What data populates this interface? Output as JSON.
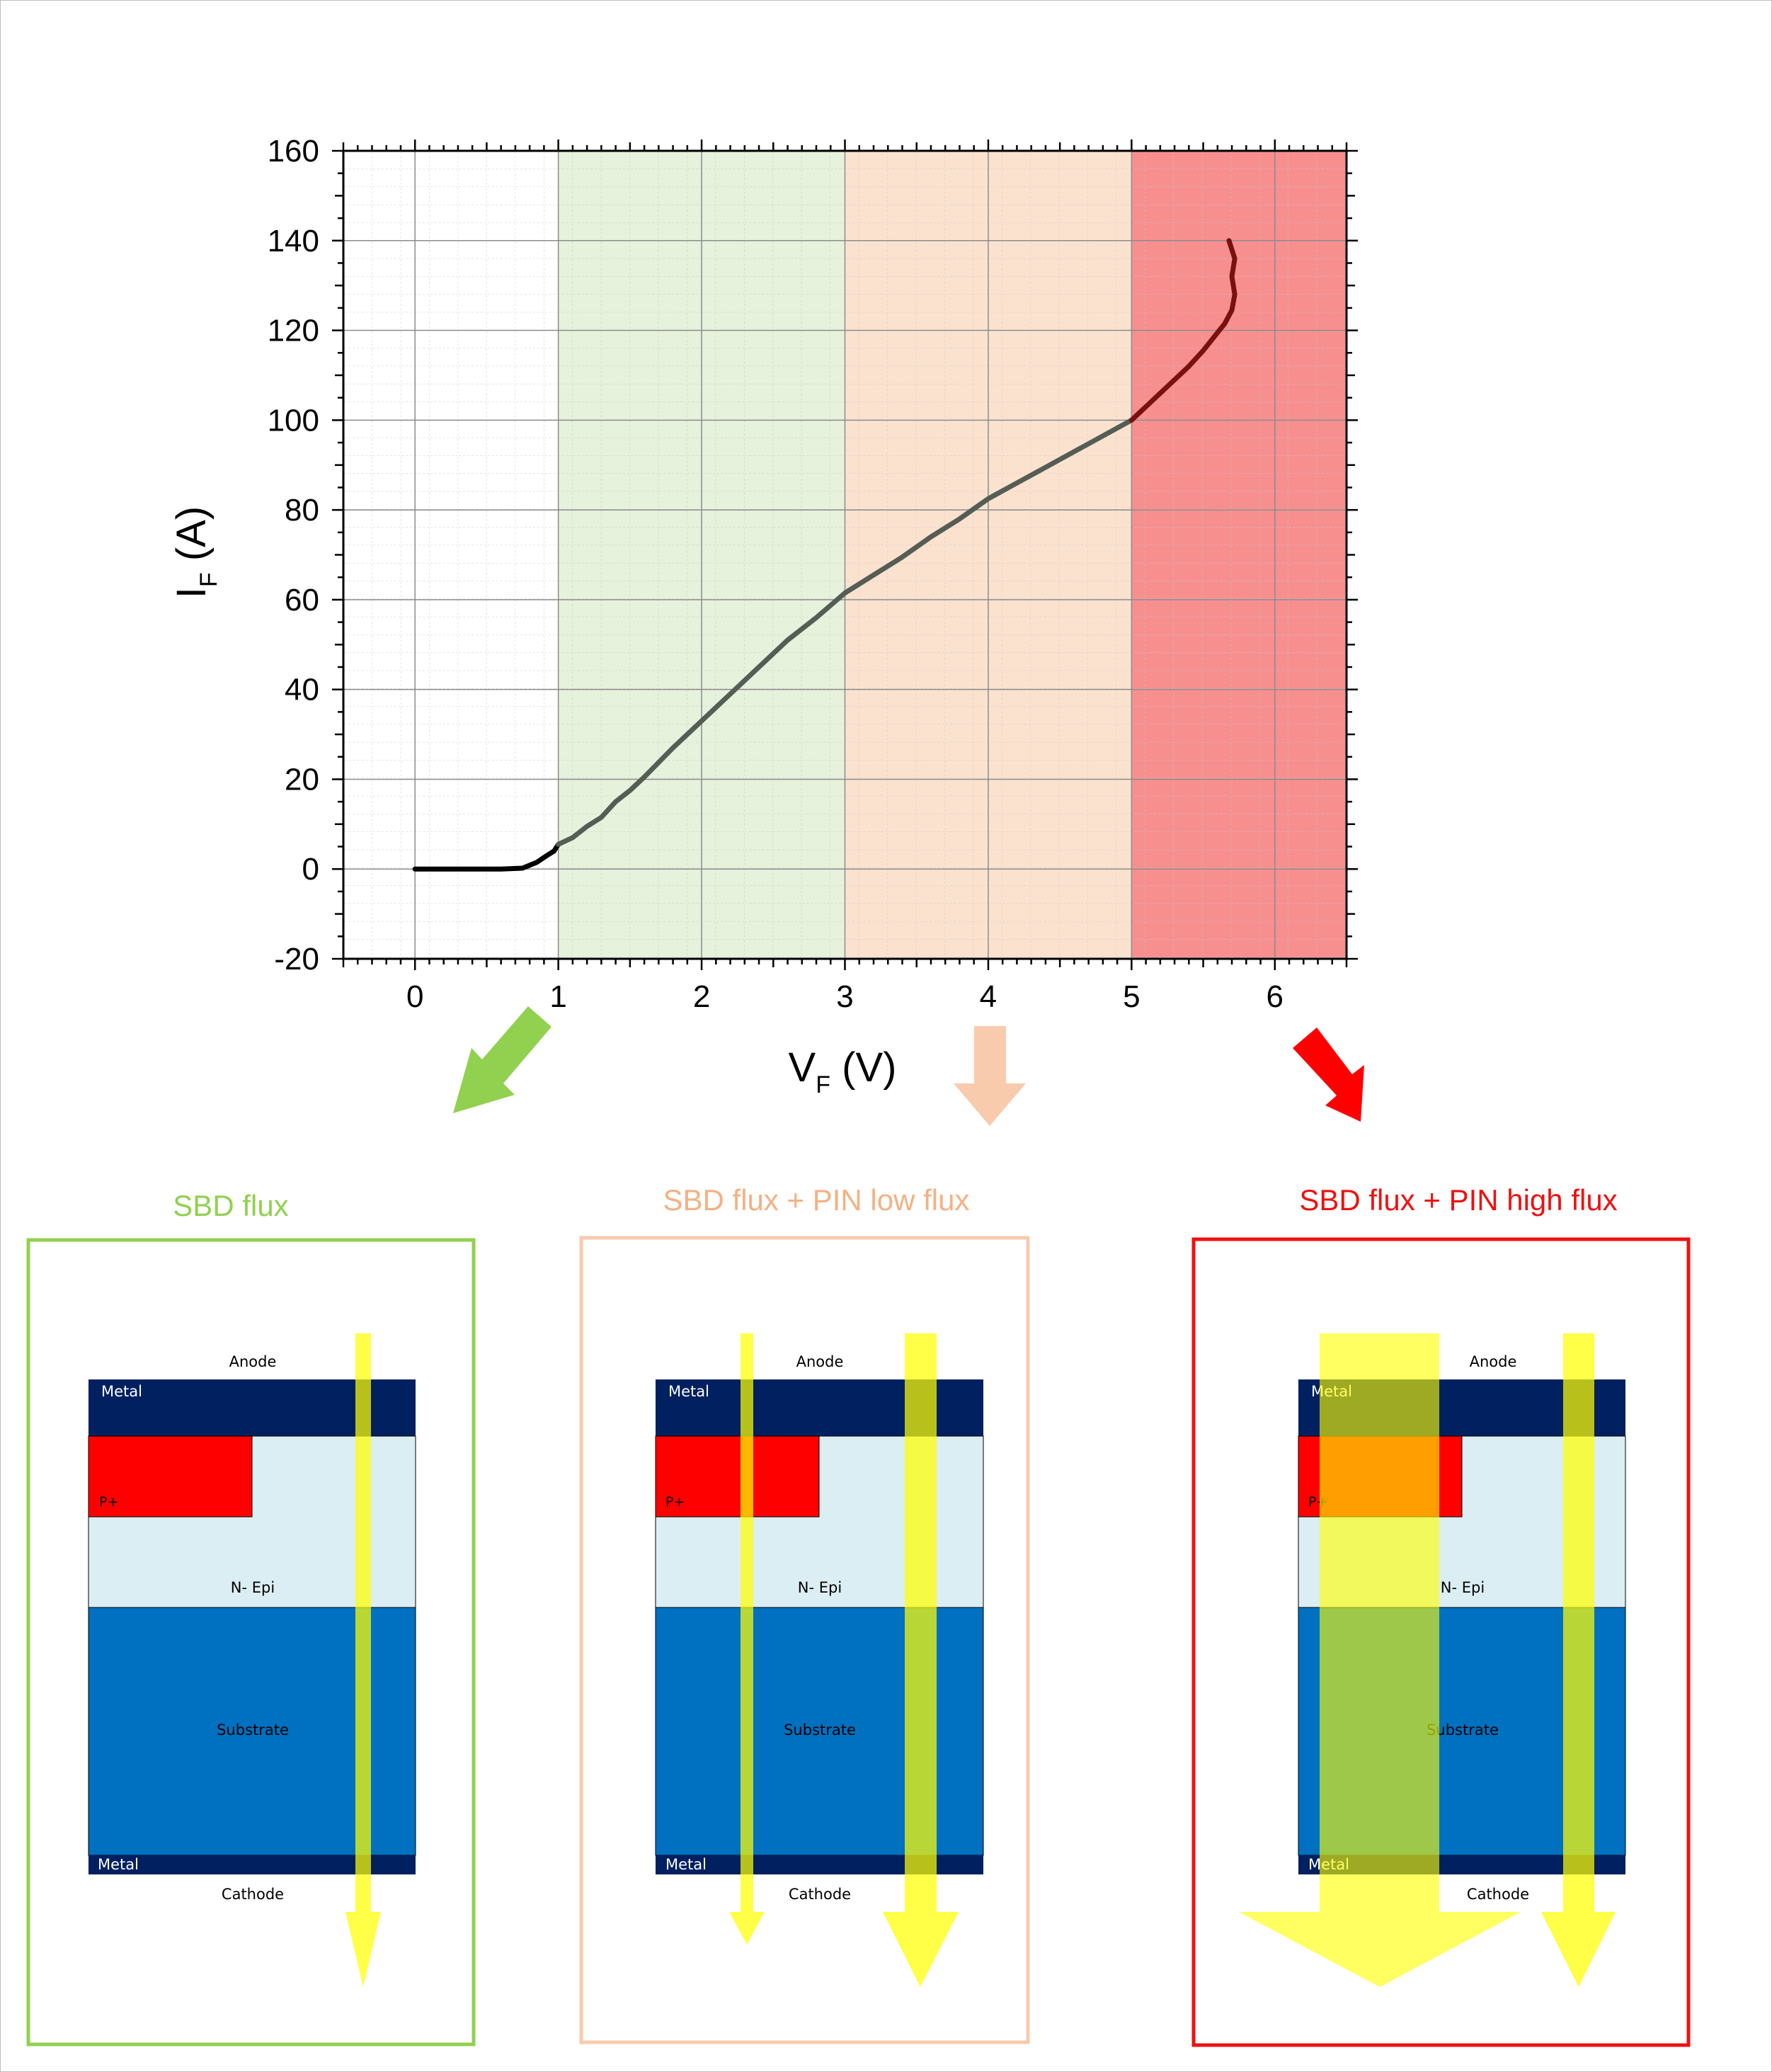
{
  "chart_data": {
    "type": "line",
    "xlabel": {
      "main": "V",
      "sub": "F",
      "unit": " (V)"
    },
    "ylabel": {
      "main": "I",
      "sub": "F",
      "unit": " (A)"
    },
    "xlim": [
      -0.5,
      6.5
    ],
    "ylim": [
      -20,
      160
    ],
    "xticks": [
      0,
      1,
      2,
      3,
      4,
      5,
      6
    ],
    "yticks": [
      -20,
      0,
      20,
      40,
      60,
      80,
      100,
      120,
      140,
      160
    ],
    "grid": true,
    "regions": [
      {
        "x0": 1,
        "x1": 3,
        "color": "#e6f2dc"
      },
      {
        "x0": 3,
        "x1": 5,
        "color": "#fbe2cf"
      },
      {
        "x0": 5,
        "x1": 6.5,
        "color": "#f78f8f"
      }
    ],
    "series": [
      {
        "points": [
          [
            0,
            0
          ],
          [
            0.3,
            0
          ],
          [
            0.6,
            0
          ],
          [
            0.75,
            0.2
          ],
          [
            0.85,
            1.5
          ],
          [
            0.92,
            3
          ],
          [
            0.97,
            4
          ],
          [
            1.0,
            5.5
          ],
          [
            1.1,
            7
          ],
          [
            1.2,
            9.5
          ],
          [
            1.3,
            11.5
          ],
          [
            1.4,
            15
          ],
          [
            1.5,
            17.5
          ],
          [
            1.6,
            20.5
          ],
          [
            1.8,
            27
          ],
          [
            2.0,
            33
          ],
          [
            2.2,
            39
          ],
          [
            2.4,
            45
          ],
          [
            2.6,
            51
          ],
          [
            2.8,
            56
          ],
          [
            3.0,
            61.5
          ],
          [
            3.2,
            65.5
          ],
          [
            3.4,
            69.5
          ],
          [
            3.6,
            74
          ],
          [
            3.8,
            78
          ],
          [
            4.0,
            82.5
          ],
          [
            4.2,
            86
          ],
          [
            4.4,
            89.5
          ],
          [
            4.6,
            93
          ],
          [
            4.8,
            96.5
          ],
          [
            5.0,
            100
          ],
          [
            5.1,
            103
          ],
          [
            5.2,
            106
          ],
          [
            5.3,
            109
          ],
          [
            5.4,
            112
          ],
          [
            5.5,
            115.5
          ],
          [
            5.6,
            119.5
          ],
          [
            5.65,
            121.5
          ],
          [
            5.7,
            124.5
          ],
          [
            5.72,
            128
          ],
          [
            5.7,
            132
          ],
          [
            5.72,
            136
          ],
          [
            5.68,
            140
          ]
        ],
        "colors": [
          "#000000",
          "#555d55",
          "#555d55",
          "#7a1010"
        ]
      }
    ]
  },
  "callouts": [
    {
      "title": "SBD flux",
      "title_color": "#92d050",
      "border_color": "#92d050",
      "arrow_color": "#92d050"
    },
    {
      "title": "SBD flux + PIN low flux",
      "title_color": "#f4b183",
      "border_color": "#f8cbad",
      "arrow_color": "#f8cbad"
    },
    {
      "title": "SBD flux + PIN high flux",
      "title_color": "#ee1111",
      "border_color": "#ee1111",
      "arrow_color": "#ee1111"
    }
  ],
  "device": {
    "anode": "Anode",
    "metal_top": "Metal",
    "p_plus": "P+",
    "n_epi": "N- Epi",
    "substrate": "Substrate",
    "metal_bottom": "Metal",
    "cathode": "Cathode",
    "colors": {
      "metal": "#002060",
      "p_plus": "#ff0000",
      "n_epi": "#dbeef3",
      "substrate": "#0070c0",
      "flux": "#ffff00"
    }
  }
}
